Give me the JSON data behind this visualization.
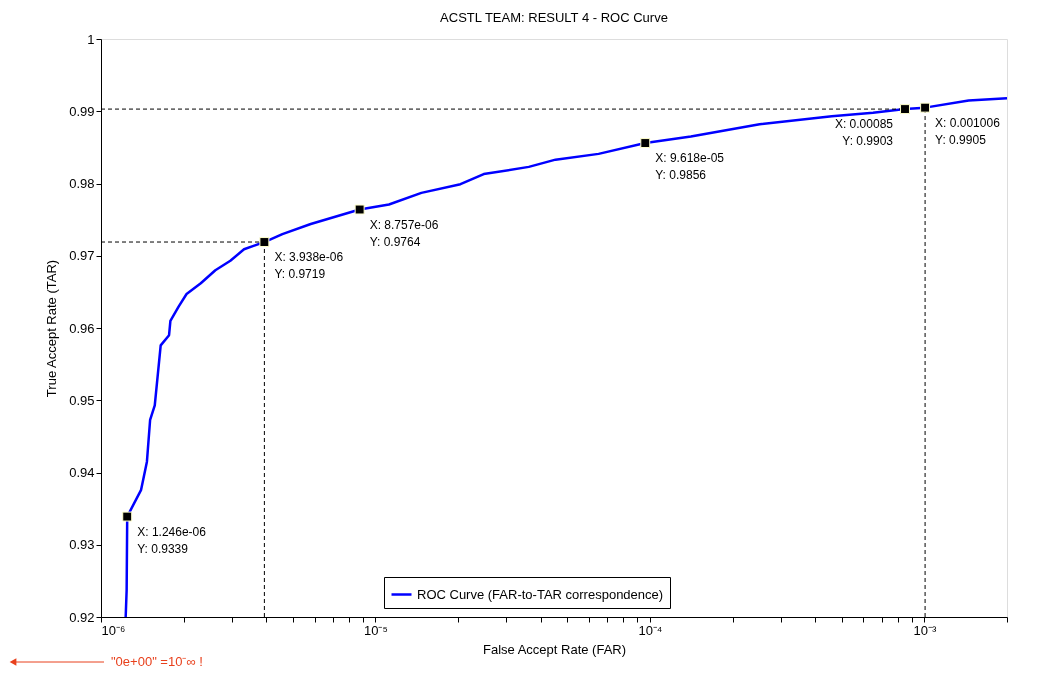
{
  "chart_data": {
    "type": "line",
    "title": "ACSTL TEAM: RESULT 4 - ROC Curve",
    "xlabel": "False Accept Rate (FAR)",
    "ylabel": "True Accept Rate (TAR)",
    "log": "x",
    "xlim": [
      1e-06,
      0.002
    ],
    "ylim": [
      0.92,
      1
    ],
    "xticks": [
      {
        "value": 1e-06,
        "label": "10⁻⁶"
      },
      {
        "value": 2e-06,
        "label": null
      },
      {
        "value": 3e-06,
        "label": null
      },
      {
        "value": 4e-06,
        "label": null
      },
      {
        "value": 5e-06,
        "label": null
      },
      {
        "value": 6e-06,
        "label": null
      },
      {
        "value": 7e-06,
        "label": null
      },
      {
        "value": 8e-06,
        "label": null
      },
      {
        "value": 9e-06,
        "label": null
      },
      {
        "value": 1e-05,
        "label": "10⁻⁵"
      },
      {
        "value": 2e-05,
        "label": null
      },
      {
        "value": 3e-05,
        "label": null
      },
      {
        "value": 4e-05,
        "label": null
      },
      {
        "value": 5e-05,
        "label": null
      },
      {
        "value": 6e-05,
        "label": null
      },
      {
        "value": 7e-05,
        "label": null
      },
      {
        "value": 8e-05,
        "label": null
      },
      {
        "value": 9e-05,
        "label": null
      },
      {
        "value": 0.0001,
        "label": "10⁻⁴"
      },
      {
        "value": 0.0002,
        "label": null
      },
      {
        "value": 0.0003,
        "label": null
      },
      {
        "value": 0.0004,
        "label": null
      },
      {
        "value": 0.0005,
        "label": null
      },
      {
        "value": 0.0006,
        "label": null
      },
      {
        "value": 0.0007,
        "label": null
      },
      {
        "value": 0.0008,
        "label": null
      },
      {
        "value": 0.0009,
        "label": null
      },
      {
        "value": 0.001,
        "label": "10⁻³"
      },
      {
        "value": 0.002,
        "label": null
      }
    ],
    "yticks": [
      0.92,
      0.93,
      0.94,
      0.95,
      0.96,
      0.97,
      0.98,
      0.99,
      1
    ],
    "grid": false,
    "legend": "bottom",
    "marker": "none",
    "line_style": "solid",
    "series": [
      {
        "name": "ROC Curve (FAR-to-TAR correspondence)",
        "color": "#0000ff",
        "x": [
          1.23e-06,
          1.24e-06,
          1.246e-06,
          1.4e-06,
          1.47e-06,
          1.51e-06,
          1.57e-06,
          1.65e-06,
          1.77e-06,
          1.79e-06,
          1.92e-06,
          2.05e-06,
          2.31e-06,
          2.61e-06,
          2.96e-06,
          3.32e-06,
          3.938e-06,
          4.58e-06,
          5.81e-06,
          8.757e-06,
          1.12e-05,
          1.47e-05,
          2.04e-05,
          2.48e-05,
          3.62e-05,
          4.53e-05,
          6.5e-05,
          9.618e-05,
          0.000141,
          0.000251,
          0.00046,
          0.00065,
          0.00085,
          0.001006,
          0.00145,
          0.002
        ],
        "values": [
          0.92,
          0.9237,
          0.9339,
          0.9376,
          0.9415,
          0.9473,
          0.9493,
          0.9576,
          0.959,
          0.961,
          0.963,
          0.9647,
          0.9662,
          0.968,
          0.9693,
          0.9709,
          0.9719,
          0.973,
          0.9744,
          0.9764,
          0.9771,
          0.9787,
          0.9799,
          0.9813,
          0.9823,
          0.9833,
          0.9841,
          0.9856,
          0.9865,
          0.9882,
          0.9893,
          0.9898,
          0.9903,
          0.9905,
          0.9915,
          0.9918
        ]
      }
    ],
    "ref_lines": [
      {
        "axis": "y",
        "value": 0.9719,
        "line_style": "dashed",
        "color": "#000000"
      },
      {
        "axis": "x",
        "value": 3.938e-06,
        "line_style": "dashed",
        "color": "#000000"
      },
      {
        "axis": "y",
        "value": 0.9903,
        "line_style": "dashed",
        "color": "#000000"
      },
      {
        "axis": "x",
        "value": 0.001006,
        "line_style": "dashed",
        "color": "#000000"
      }
    ],
    "annotations": [
      {
        "text": "X: 1.246e-06\nY: 0.9339",
        "x": 1.246e-06,
        "y": 0.9339
      },
      {
        "text": "X: 3.938e-06\nY: 0.9719",
        "x": 3.938e-06,
        "y": 0.9719
      },
      {
        "text": "X: 8.757e-06\nY: 0.9764",
        "x": 8.757e-06,
        "y": 0.9764
      },
      {
        "text": "X: 9.618e-05\nY: 0.9856",
        "x": 9.618e-05,
        "y": 0.9856
      },
      {
        "text": "X: 0.00085\nY: 0.9903",
        "x": 0.00085,
        "y": 0.9903
      },
      {
        "text": "X: 0.001006\nY: 0.9905",
        "x": 0.001006,
        "y": 0.9905
      },
      "\"0e+00\" =10⁻∞ !"
    ]
  }
}
